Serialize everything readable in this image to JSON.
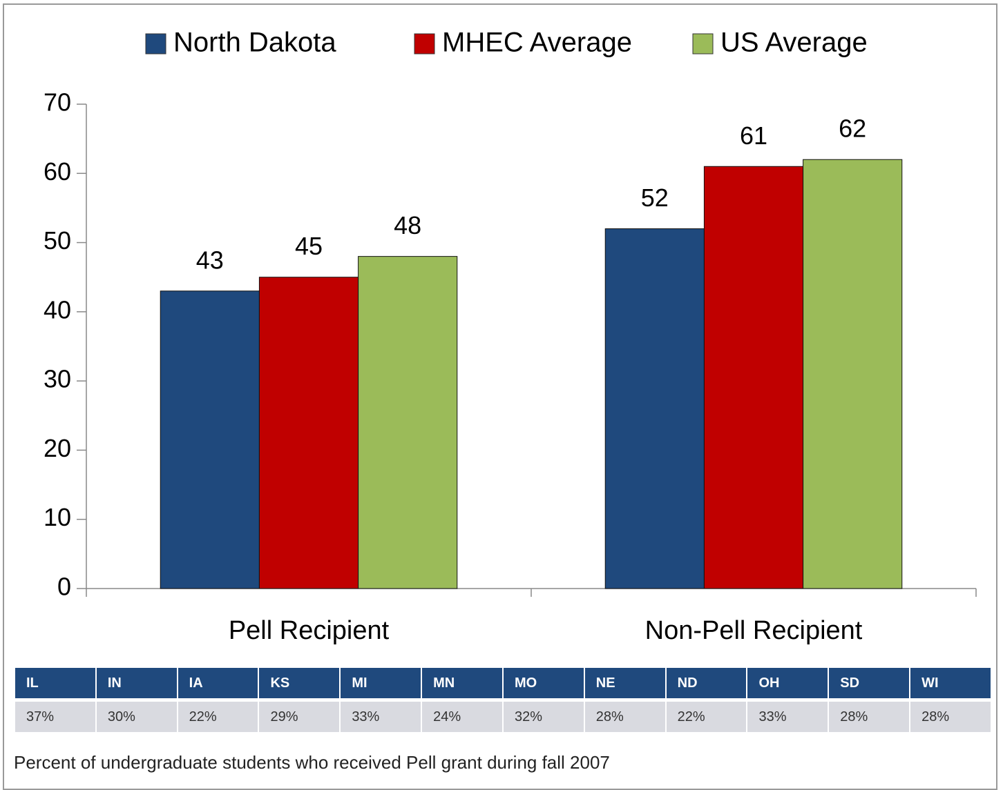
{
  "chart_data": {
    "type": "bar",
    "categories": [
      "Pell Recipient",
      "Non-Pell Recipient"
    ],
    "series": [
      {
        "name": "North Dakota",
        "color": "#1f497d",
        "values": [
          43,
          52
        ]
      },
      {
        "name": "MHEC Average",
        "color": "#c00000",
        "values": [
          45,
          61
        ]
      },
      {
        "name": "US Average",
        "color": "#9bbb59",
        "values": [
          48,
          62
        ]
      }
    ],
    "ylim": [
      0,
      70
    ],
    "yticks": [
      0,
      10,
      20,
      30,
      40,
      50,
      60,
      70
    ],
    "grid": false,
    "legend": "top"
  },
  "table": {
    "header": [
      "IL",
      "IN",
      "IA",
      "KS",
      "MI",
      "MN",
      "MO",
      "NE",
      "ND",
      "OH",
      "SD",
      "WI"
    ],
    "rows": [
      [
        "37%",
        "30%",
        "22%",
        "29%",
        "33%",
        "24%",
        "32%",
        "28%",
        "22%",
        "33%",
        "28%",
        "28%"
      ]
    ]
  },
  "caption": "Percent of undergraduate students who received Pell grant during fall 2007"
}
